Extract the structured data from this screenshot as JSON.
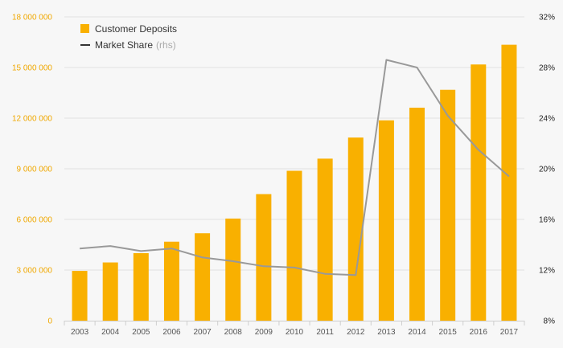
{
  "chart_data": {
    "type": "bar",
    "categories": [
      "2003",
      "2004",
      "2005",
      "2006",
      "2007",
      "2008",
      "2009",
      "2010",
      "2011",
      "2012",
      "2013",
      "2014",
      "2015",
      "2016",
      "2017"
    ],
    "series": [
      {
        "name": "Customer Deposits",
        "type": "bar",
        "axis": "left",
        "color": "#f9b000",
        "values": [
          2950000,
          3450000,
          4000000,
          4680000,
          5180000,
          6050000,
          7500000,
          8880000,
          9600000,
          10850000,
          11870000,
          12620000,
          13680000,
          15180000,
          16350000
        ]
      },
      {
        "name": "Market Share",
        "name_suffix": "(rhs)",
        "type": "line",
        "axis": "right",
        "color": "#999999",
        "values": [
          13.7,
          13.9,
          13.5,
          13.7,
          13.0,
          12.7,
          12.3,
          12.2,
          11.7,
          11.6,
          28.6,
          28.0,
          24.2,
          21.5,
          19.4
        ]
      }
    ],
    "y_left": {
      "ylim": [
        0,
        18000000
      ],
      "ticks": [
        0,
        3000000,
        6000000,
        9000000,
        12000000,
        15000000,
        18000000
      ],
      "tick_labels": [
        "0",
        "3 000 000",
        "6 000 000",
        "9 000 000",
        "12 000 000",
        "15 000 000",
        "18 000 000"
      ],
      "color": "#f0a800"
    },
    "y_right": {
      "ylim": [
        8,
        32
      ],
      "ticks": [
        8,
        12,
        16,
        20,
        24,
        28,
        32
      ],
      "tick_labels": [
        "8%",
        "12%",
        "16%",
        "20%",
        "24%",
        "28%",
        "32%"
      ],
      "color": "#222222"
    },
    "legend": {
      "placement": "top-left",
      "entries": [
        {
          "label": "Customer Deposits",
          "marker": "square",
          "color": "#f9b000"
        },
        {
          "label": "Market Share",
          "suffix": "(rhs)",
          "marker": "line",
          "color": "#333333"
        }
      ]
    },
    "grid": true,
    "title": "",
    "xlabel": "",
    "ylabel": ""
  }
}
